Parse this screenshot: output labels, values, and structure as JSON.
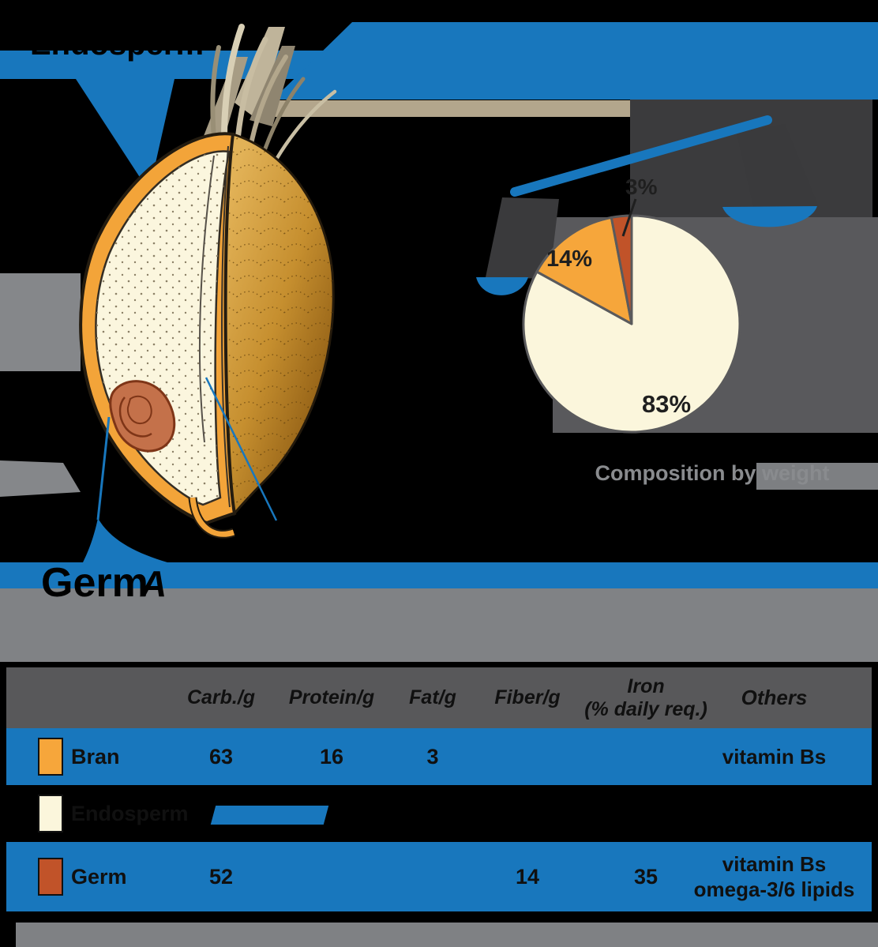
{
  "colors": {
    "accent_blue": "#1877BD",
    "bran_orange": "#F6A63B",
    "endosperm_cream": "#FBF6DC",
    "germ_sienna": "#C15329",
    "panel_dark": "#3B3B3D",
    "panel_mid": "#59595C",
    "band_grey": "#808285",
    "header_grey": "#58585A",
    "awn_tan": "#B3A68C"
  },
  "labels": {
    "endosperm": "Endosperm",
    "bran": "Bran",
    "germ_heading": "Germ",
    "germ_caption_fragment": "A"
  },
  "pie": {
    "caption": "Composition by weight",
    "slices": [
      {
        "name": "Endosperm",
        "pct": 83,
        "display": "83%",
        "color": "#FBF6DC"
      },
      {
        "name": "Bran",
        "pct": 14,
        "display": "14%",
        "color": "#F6A63B"
      },
      {
        "name": "Germ",
        "pct": 3,
        "display": "3%",
        "color": "#C15329"
      }
    ]
  },
  "chart_data": {
    "type": "pie",
    "title": "Composition by weight",
    "labels": [
      "Endosperm",
      "Bran",
      "Germ"
    ],
    "values": [
      83,
      14,
      3
    ],
    "colors": [
      "#FBF6DC",
      "#F6A63B",
      "#C15329"
    ],
    "legend_position": "none"
  },
  "table": {
    "headers": {
      "carb": "Carb./g",
      "protein": "Protein/g",
      "fat": "Fat/g",
      "fiber": "Fiber/g",
      "iron_line1": "Iron",
      "iron_line2": "(% daily req.)",
      "others": "Others"
    },
    "rows": [
      {
        "label": "Bran",
        "swatch": "#F6A63B",
        "values": [
          "63",
          "16",
          "3",
          "",
          ""
        ],
        "others": [
          "vitamin Bs",
          ""
        ]
      },
      {
        "label": "Endosperm",
        "swatch": "#FBF6DC",
        "values": [
          "",
          "",
          "",
          "",
          ""
        ],
        "others": [
          "",
          ""
        ]
      },
      {
        "label": "Germ",
        "swatch": "#C15329",
        "values": [
          "52",
          "",
          "",
          "14",
          "35"
        ],
        "others": [
          "vitamin Bs",
          "omega-3/6 lipids"
        ]
      }
    ]
  }
}
